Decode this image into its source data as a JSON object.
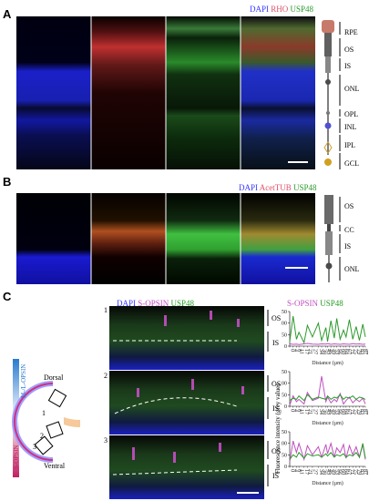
{
  "panels": {
    "a": {
      "letter": "A",
      "legend": [
        "DAPI",
        "RHO",
        "USP48"
      ],
      "legend_colors": [
        "#3a3aff",
        "#e0506a",
        "#2a9a2a"
      ],
      "layers": [
        "RPE",
        "OS",
        "IS",
        "ONL",
        "OPL",
        "INL",
        "IPL",
        "GCL"
      ]
    },
    "b": {
      "letter": "B",
      "legend": [
        "DAPI",
        "AcetTUB",
        "USP48"
      ],
      "legend_colors": [
        "#3a3aff",
        "#e0506a",
        "#2a9a2a"
      ],
      "layers": [
        "OS",
        "CC",
        "IS",
        "ONL"
      ]
    },
    "c": {
      "letter": "C",
      "legend": [
        "DAPI",
        "S-OPSIN",
        "USP48"
      ],
      "legend_colors": [
        "#3a3aff",
        "#c050c0",
        "#2a9a2a"
      ],
      "chart_legend": [
        "S-OPSIN",
        "USP48"
      ],
      "gradient_top": "M-/L-OPSIN",
      "gradient_bottom": "S-OPSIN",
      "dorsal": "Dorsal",
      "ventral": "Ventral",
      "row_numbers": [
        "1",
        "2",
        "3"
      ],
      "layer_os": "OS",
      "layer_is": "IS",
      "ylabel": "Fluorescence intensity (grey value)"
    }
  },
  "chart_data": [
    {
      "type": "line",
      "title": "",
      "xlabel": "Distance (µm)",
      "ylabel": "Fluorescence intensity (grey value)",
      "ylim": [
        0,
        150
      ],
      "yticks": [
        0,
        50,
        100,
        150
      ],
      "xticks": [
        "0",
        "4",
        "8",
        "11",
        "17",
        "21",
        "27",
        "34",
        "38",
        "43",
        "45",
        "49",
        "53",
        "56",
        "60",
        "64",
        "67",
        "71",
        "75",
        "79",
        "83",
        "87",
        "90"
      ],
      "x": [
        0,
        4,
        8,
        11,
        17,
        21,
        27,
        34,
        38,
        43,
        45,
        49,
        53,
        56,
        60,
        64,
        67,
        71,
        75,
        79,
        83,
        87,
        90
      ],
      "series": [
        {
          "name": "S-OPSIN",
          "values": [
            10,
            8,
            9,
            7,
            10,
            12,
            9,
            8,
            10,
            9,
            11,
            8,
            10,
            9,
            8,
            10,
            9,
            8,
            11,
            9,
            10,
            8,
            9
          ]
        },
        {
          "name": "USP48",
          "values": [
            20,
            130,
            30,
            60,
            15,
            90,
            40,
            100,
            25,
            80,
            20,
            110,
            35,
            120,
            30,
            70,
            40,
            115,
            30,
            85,
            25,
            95,
            40
          ]
        }
      ]
    },
    {
      "type": "line",
      "title": "",
      "xlabel": "Distance (µm)",
      "ylabel": "Fluorescence intensity (grey value)",
      "ylim": [
        0,
        150
      ],
      "yticks": [
        0,
        50,
        100,
        150
      ],
      "xticks": [
        "0",
        "4",
        "8",
        "11",
        "17",
        "21",
        "27",
        "34",
        "38",
        "43",
        "45",
        "49",
        "53",
        "56",
        "60",
        "64",
        "67",
        "71",
        "75",
        "79",
        "83",
        "87",
        "90"
      ],
      "x": [
        0,
        4,
        8,
        11,
        17,
        21,
        27,
        34,
        38,
        43,
        45,
        49,
        53,
        56,
        60,
        64,
        67,
        71,
        75,
        79,
        83,
        87,
        90
      ],
      "series": [
        {
          "name": "S-OPSIN",
          "values": [
            5,
            45,
            20,
            30,
            10,
            60,
            25,
            35,
            130,
            20,
            40,
            15,
            30,
            20,
            55,
            10,
            25,
            40,
            15,
            30,
            20,
            35,
            10
          ]
        },
        {
          "name": "USP48",
          "values": [
            25,
            35,
            30,
            45,
            25,
            50,
            30,
            40,
            35,
            30,
            45,
            30,
            40,
            35,
            50,
            30,
            40,
            35,
            45,
            30,
            40,
            35,
            30
          ]
        }
      ]
    },
    {
      "type": "line",
      "title": "",
      "xlabel": "Distance (µm)",
      "ylabel": "Fluorescence intensity (grey value)",
      "ylim": [
        0,
        150
      ],
      "yticks": [
        0,
        50,
        100,
        150
      ],
      "xticks": [
        "0",
        "4",
        "8",
        "11",
        "17",
        "21",
        "27",
        "34",
        "38",
        "43",
        "45",
        "49",
        "53",
        "56",
        "60",
        "64",
        "67",
        "71",
        "75",
        "79",
        "83",
        "87",
        "90"
      ],
      "x": [
        0,
        4,
        8,
        11,
        17,
        21,
        27,
        34,
        38,
        43,
        45,
        49,
        53,
        56,
        60,
        64,
        67,
        71,
        75,
        79,
        83,
        87,
        90
      ],
      "series": [
        {
          "name": "S-OPSIN",
          "values": [
            20,
            110,
            60,
            100,
            30,
            90,
            50,
            85,
            40,
            95,
            55,
            100,
            40,
            80,
            60,
            95,
            35,
            90,
            50,
            85,
            40,
            95,
            30
          ]
        },
        {
          "name": "USP48",
          "values": [
            30,
            50,
            40,
            60,
            35,
            55,
            45,
            50,
            40,
            55,
            45,
            60,
            40,
            50,
            45,
            55,
            40,
            50,
            45,
            60,
            40,
            100,
            35
          ]
        }
      ]
    }
  ]
}
